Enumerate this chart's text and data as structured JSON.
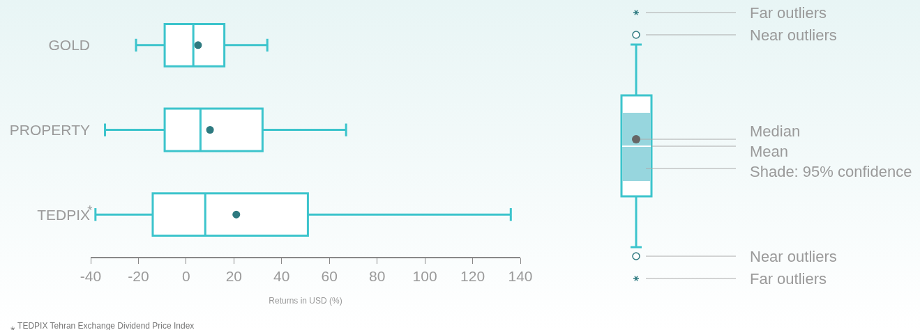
{
  "chart_data": {
    "type": "box",
    "orientation": "horizontal",
    "categories": [
      "GOLD",
      "PROPERTY",
      "TEDPIX"
    ],
    "boxes": [
      {
        "low": -21,
        "q1": -9,
        "median": 3,
        "q3": 16,
        "high": 34,
        "mean": 5
      },
      {
        "low": -34,
        "q1": -9,
        "median": 6,
        "q3": 32,
        "high": 67,
        "mean": 10
      },
      {
        "low": -38,
        "q1": -14,
        "median": 8,
        "q3": 51,
        "high": 136,
        "mean": 21
      }
    ],
    "color": "#3cc4cc",
    "xlim": [
      -40,
      140
    ],
    "xticks": [
      -40,
      -20,
      0,
      20,
      40,
      60,
      80,
      100,
      120,
      140
    ],
    "xlabel": "Returns in USD (%)",
    "annotations": [
      "Far outliers",
      "Near outliers",
      "Median",
      "Mean",
      "Shade: 95% confidence",
      "Near outliers",
      "Far outliers",
      "⁎",
      "⁎ TEDPIX Tehran Exchange Dividend Price Index"
    ]
  }
}
